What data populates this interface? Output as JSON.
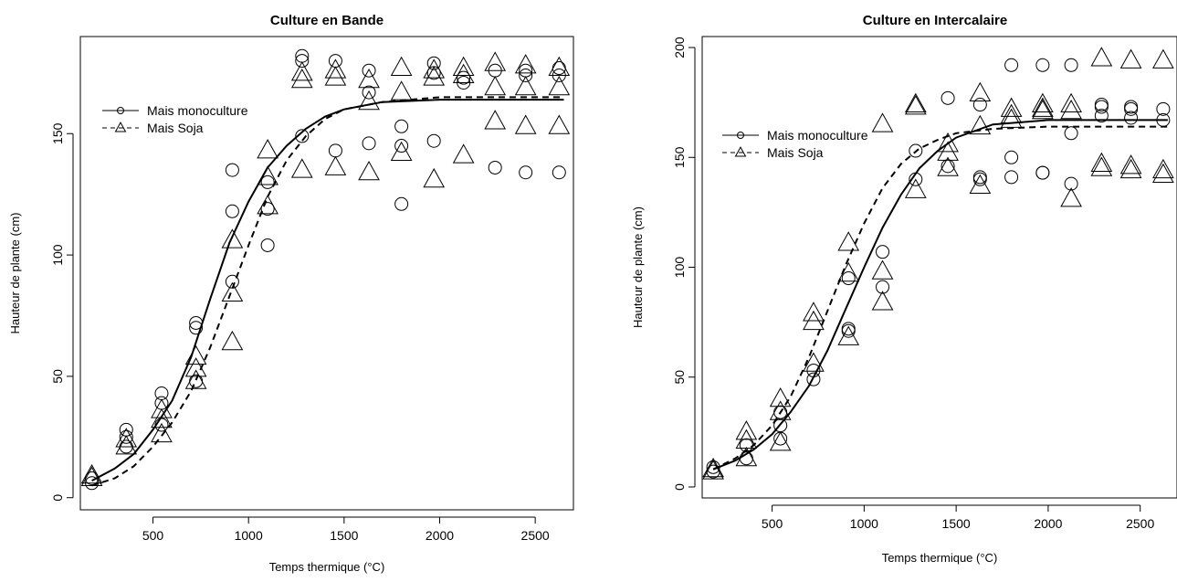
{
  "chart_data": [
    {
      "type": "scatter",
      "title": "Culture en Bande",
      "xlabel": "Temps thermique (°C)",
      "ylabel": "Hauteur de plante (cm)",
      "xlim": [
        120,
        2700
      ],
      "ylim": [
        -5,
        190
      ],
      "xticks": [
        500,
        1000,
        1500,
        2000,
        2500
      ],
      "yticks": [
        0,
        50,
        100,
        150
      ],
      "grid": false,
      "legend_position": "top-left",
      "series": [
        {
          "name": "Mais monoculture",
          "marker": "circle",
          "line": "solid",
          "points": [
            [
              180,
              6
            ],
            [
              180,
              8
            ],
            [
              360,
              28
            ],
            [
              360,
              25
            ],
            [
              360,
              21
            ],
            [
              545,
              43
            ],
            [
              545,
              39
            ],
            [
              545,
              30
            ],
            [
              725,
              72
            ],
            [
              725,
              70
            ],
            [
              725,
              48
            ],
            [
              915,
              135
            ],
            [
              915,
              118
            ],
            [
              915,
              89
            ],
            [
              1100,
              130
            ],
            [
              1100,
              119
            ],
            [
              1100,
              104
            ],
            [
              1280,
              182
            ],
            [
              1280,
              180
            ],
            [
              1280,
              149
            ],
            [
              1455,
              180
            ],
            [
              1455,
              143
            ],
            [
              1630,
              176
            ],
            [
              1630,
              167
            ],
            [
              1630,
              146
            ],
            [
              1800,
              153
            ],
            [
              1800,
              145
            ],
            [
              1800,
              121
            ],
            [
              1970,
              179
            ],
            [
              1970,
              175
            ],
            [
              1970,
              147
            ],
            [
              2125,
              173
            ],
            [
              2125,
              171
            ],
            [
              2290,
              176
            ],
            [
              2290,
              136
            ],
            [
              2450,
              176
            ],
            [
              2450,
              174
            ],
            [
              2450,
              134
            ],
            [
              2625,
              177
            ],
            [
              2625,
              174
            ],
            [
              2625,
              134
            ]
          ],
          "fit": [
            [
              180,
              7
            ],
            [
              300,
              12
            ],
            [
              400,
              18
            ],
            [
              500,
              28
            ],
            [
              600,
              40
            ],
            [
              700,
              58
            ],
            [
              800,
              82
            ],
            [
              900,
              105
            ],
            [
              1000,
              122
            ],
            [
              1100,
              136
            ],
            [
              1200,
              145
            ],
            [
              1300,
              152
            ],
            [
              1400,
              157
            ],
            [
              1500,
              160
            ],
            [
              1700,
              163
            ],
            [
              2000,
              164
            ],
            [
              2300,
              164
            ],
            [
              2650,
              164
            ]
          ]
        },
        {
          "name": "Mais Soja",
          "marker": "triangle",
          "line": "dashed",
          "points": [
            [
              180,
              9
            ],
            [
              180,
              8
            ],
            [
              360,
              24
            ],
            [
              360,
              21
            ],
            [
              545,
              36
            ],
            [
              545,
              32
            ],
            [
              545,
              26
            ],
            [
              725,
              58
            ],
            [
              725,
              53
            ],
            [
              725,
              48
            ],
            [
              915,
              106
            ],
            [
              915,
              84
            ],
            [
              915,
              64
            ],
            [
              1100,
              143
            ],
            [
              1100,
              132
            ],
            [
              1100,
              120
            ],
            [
              1280,
              175
            ],
            [
              1280,
              172
            ],
            [
              1280,
              135
            ],
            [
              1455,
              176
            ],
            [
              1455,
              173
            ],
            [
              1455,
              136
            ],
            [
              1630,
              172
            ],
            [
              1630,
              163
            ],
            [
              1630,
              134
            ],
            [
              1800,
              177
            ],
            [
              1800,
              167
            ],
            [
              1800,
              142
            ],
            [
              1970,
              176
            ],
            [
              1970,
              173
            ],
            [
              1970,
              131
            ],
            [
              2125,
              177
            ],
            [
              2125,
              174
            ],
            [
              2125,
              141
            ],
            [
              2290,
              179
            ],
            [
              2290,
              169
            ],
            [
              2290,
              155
            ],
            [
              2450,
              178
            ],
            [
              2450,
              169
            ],
            [
              2450,
              153
            ],
            [
              2625,
              177
            ],
            [
              2625,
              169
            ],
            [
              2625,
              153
            ]
          ],
          "fit": [
            [
              180,
              5
            ],
            [
              300,
              8
            ],
            [
              400,
              13
            ],
            [
              500,
              21
            ],
            [
              600,
              31
            ],
            [
              700,
              44
            ],
            [
              800,
              62
            ],
            [
              900,
              83
            ],
            [
              1000,
              104
            ],
            [
              1100,
              124
            ],
            [
              1200,
              139
            ],
            [
              1300,
              149
            ],
            [
              1400,
              156
            ],
            [
              1500,
              160
            ],
            [
              1700,
              163
            ],
            [
              2000,
              165
            ],
            [
              2300,
              165
            ],
            [
              2650,
              165
            ]
          ]
        }
      ]
    },
    {
      "type": "scatter",
      "title": "Culture en Intercalaire",
      "xlabel": "Temps thermique (°C)",
      "ylabel": "Hauteur de plante (cm)",
      "xlim": [
        120,
        2700
      ],
      "ylim": [
        -5,
        205
      ],
      "xticks": [
        500,
        1000,
        1500,
        2000,
        2500
      ],
      "yticks": [
        0,
        50,
        100,
        150,
        200
      ],
      "grid": false,
      "legend_position": "top-left",
      "series": [
        {
          "name": "Mais monoculture",
          "marker": "circle",
          "line": "solid",
          "points": [
            [
              180,
              9
            ],
            [
              180,
              7
            ],
            [
              360,
              19
            ],
            [
              360,
              13
            ],
            [
              545,
              34
            ],
            [
              545,
              28
            ],
            [
              545,
              22
            ],
            [
              725,
              53
            ],
            [
              725,
              49
            ],
            [
              915,
              95
            ],
            [
              915,
              72
            ],
            [
              915,
              71
            ],
            [
              1100,
              107
            ],
            [
              1100,
              91
            ],
            [
              1280,
              153
            ],
            [
              1280,
              140
            ],
            [
              1455,
              177
            ],
            [
              1455,
              146
            ],
            [
              1630,
              174
            ],
            [
              1630,
              141
            ],
            [
              1630,
              140
            ],
            [
              1800,
              192
            ],
            [
              1800,
              150
            ],
            [
              1800,
              141
            ],
            [
              1970,
              192
            ],
            [
              1970,
              143
            ],
            [
              1970,
              143
            ],
            [
              2125,
              192
            ],
            [
              2125,
              161
            ],
            [
              2125,
              138
            ],
            [
              2290,
              174
            ],
            [
              2290,
              173
            ],
            [
              2290,
              169
            ],
            [
              2450,
              173
            ],
            [
              2450,
              172
            ],
            [
              2450,
              168
            ],
            [
              2625,
              172
            ],
            [
              2625,
              167
            ]
          ],
          "fit": [
            [
              180,
              8
            ],
            [
              300,
              12
            ],
            [
              400,
              17
            ],
            [
              500,
              24
            ],
            [
              600,
              34
            ],
            [
              700,
              46
            ],
            [
              800,
              62
            ],
            [
              900,
              81
            ],
            [
              1000,
              100
            ],
            [
              1100,
              118
            ],
            [
              1200,
              133
            ],
            [
              1300,
              145
            ],
            [
              1400,
              153
            ],
            [
              1500,
              159
            ],
            [
              1700,
              165
            ],
            [
              2000,
              167
            ],
            [
              2300,
              167
            ],
            [
              2650,
              167
            ]
          ]
        },
        {
          "name": "Mais Soja",
          "marker": "triangle",
          "line": "dashed",
          "points": [
            [
              180,
              8
            ],
            [
              180,
              7
            ],
            [
              360,
              25
            ],
            [
              360,
              21
            ],
            [
              360,
              13
            ],
            [
              545,
              40
            ],
            [
              545,
              34
            ],
            [
              545,
              20
            ],
            [
              725,
              79
            ],
            [
              725,
              75
            ],
            [
              725,
              56
            ],
            [
              915,
              111
            ],
            [
              915,
              97
            ],
            [
              915,
              68
            ],
            [
              1100,
              165
            ],
            [
              1100,
              98
            ],
            [
              1100,
              84
            ],
            [
              1280,
              174
            ],
            [
              1280,
              173
            ],
            [
              1280,
              135
            ],
            [
              1455,
              156
            ],
            [
              1455,
              152
            ],
            [
              1455,
              145
            ],
            [
              1630,
              179
            ],
            [
              1630,
              164
            ],
            [
              1630,
              137
            ],
            [
              1800,
              172
            ],
            [
              1800,
              169
            ],
            [
              1800,
              167
            ],
            [
              1970,
              174
            ],
            [
              1970,
              172
            ],
            [
              1970,
              171
            ],
            [
              2125,
              174
            ],
            [
              2125,
              171
            ],
            [
              2125,
              131
            ],
            [
              2290,
              195
            ],
            [
              2290,
              147
            ],
            [
              2290,
              145
            ],
            [
              2450,
              194
            ],
            [
              2450,
              146
            ],
            [
              2450,
              144
            ],
            [
              2625,
              194
            ],
            [
              2625,
              144
            ],
            [
              2625,
              142
            ]
          ],
          "fit": [
            [
              180,
              8
            ],
            [
              300,
              13
            ],
            [
              400,
              19
            ],
            [
              500,
              28
            ],
            [
              600,
              41
            ],
            [
              700,
              59
            ],
            [
              800,
              80
            ],
            [
              900,
              101
            ],
            [
              1000,
              120
            ],
            [
              1100,
              136
            ],
            [
              1200,
              147
            ],
            [
              1300,
              154
            ],
            [
              1400,
              158
            ],
            [
              1500,
              161
            ],
            [
              1700,
              163
            ],
            [
              2000,
              164
            ],
            [
              2300,
              164
            ],
            [
              2650,
              164
            ]
          ]
        }
      ]
    }
  ]
}
